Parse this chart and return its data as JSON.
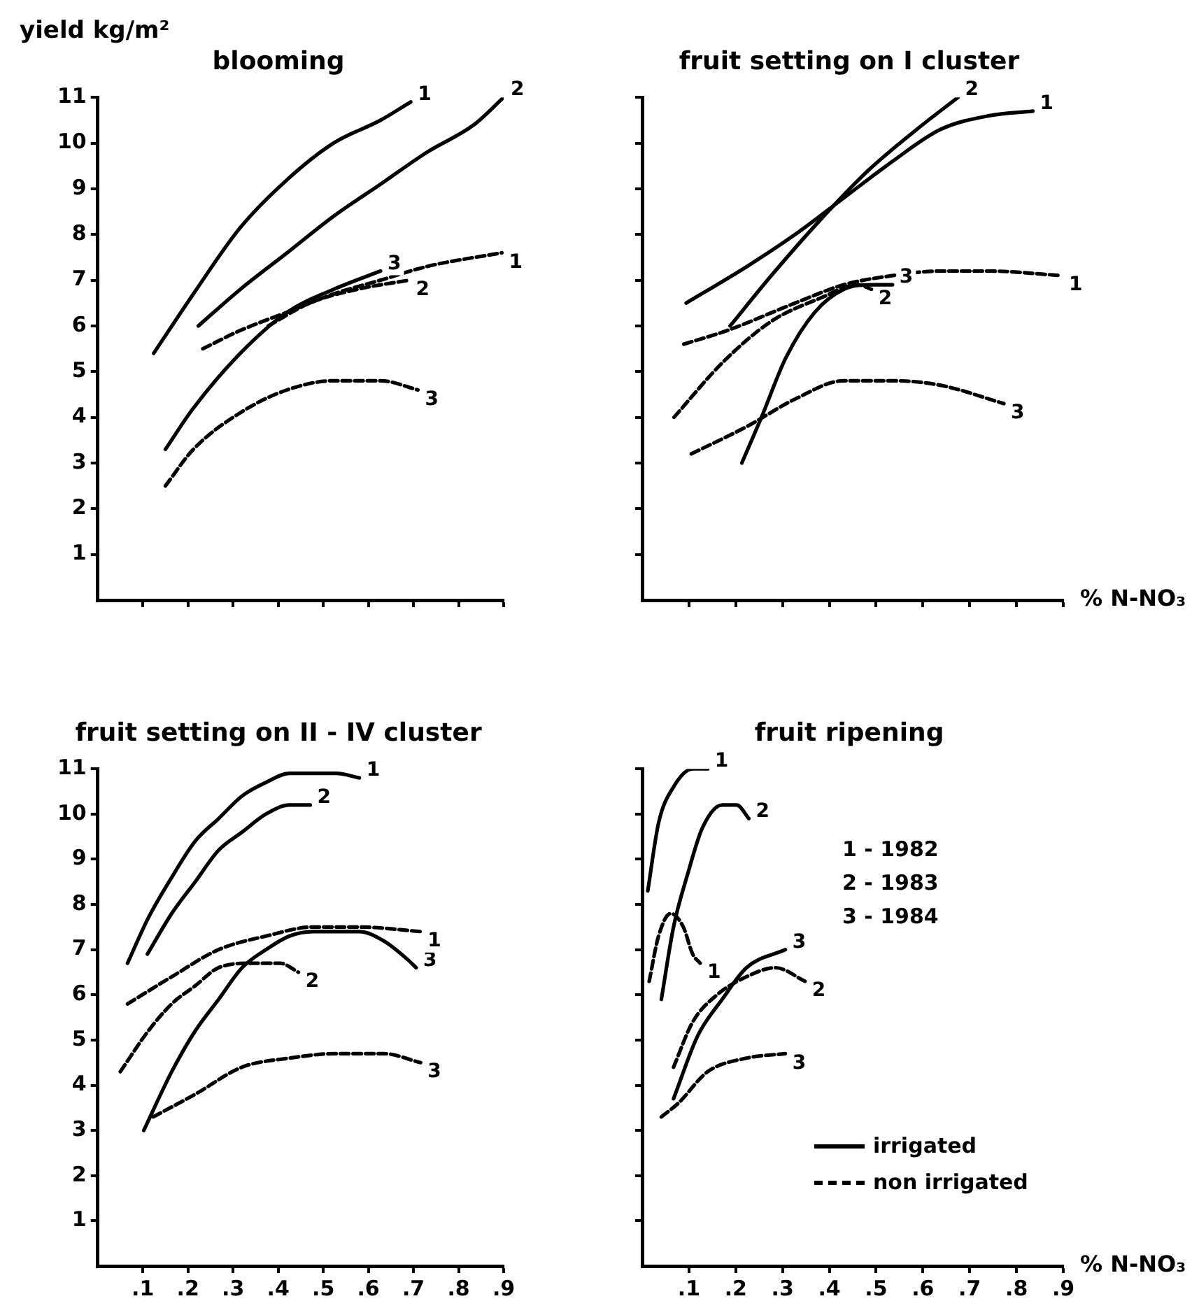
{
  "chart_data": [
    {
      "type": "line",
      "title": "blooming",
      "ylabel": "yield kg/m²",
      "xlim": [
        0,
        0.9
      ],
      "ylim": [
        0,
        11
      ],
      "xticks": [
        {
          "value": 0.1,
          "label": null
        },
        {
          "value": 0.2,
          "label": null
        },
        {
          "value": 0.3,
          "label": null
        },
        {
          "value": 0.4,
          "label": null
        },
        {
          "value": 0.5,
          "label": null
        },
        {
          "value": 0.6,
          "label": null
        },
        {
          "value": 0.7,
          "label": null
        },
        {
          "value": 0.8,
          "label": null
        },
        {
          "value": 0.9,
          "label": null
        }
      ],
      "yticks": [
        1,
        2,
        3,
        4,
        5,
        6,
        7,
        8,
        9,
        10,
        11
      ],
      "tick_labels": "y",
      "marker": "none",
      "series": [
        {
          "name": "1",
          "color": "#000000",
          "line_style": "solid",
          "x": [
            0.124,
            0.212,
            0.316,
            0.42,
            0.523,
            0.627,
            0.694
          ],
          "values": [
            5.4,
            6.7,
            8.15,
            9.2,
            10.0,
            10.5,
            10.9
          ]
        },
        {
          "name": "2",
          "color": "#000000",
          "line_style": "solid",
          "x": [
            0.223,
            0.316,
            0.42,
            0.523,
            0.627,
            0.73,
            0.834,
            0.9
          ],
          "values": [
            6.0,
            6.8,
            7.6,
            8.4,
            9.1,
            9.8,
            10.4,
            11.0
          ]
        },
        {
          "name": "3",
          "color": "#000000",
          "line_style": "solid",
          "x": [
            0.15,
            0.212,
            0.316,
            0.42,
            0.523,
            0.627
          ],
          "values": [
            3.3,
            4.2,
            5.4,
            6.3,
            6.8,
            7.2
          ]
        },
        {
          "name": "1",
          "color": "#000000",
          "line_style": "dashed",
          "x": [
            0.233,
            0.316,
            0.42,
            0.523,
            0.627,
            0.73,
            0.896
          ],
          "values": [
            5.5,
            5.9,
            6.3,
            6.7,
            7.0,
            7.3,
            7.6
          ]
        },
        {
          "name": "2",
          "color": "#000000",
          "line_style": "dashed",
          "x": [
            0.378,
            0.47,
            0.575,
            0.69
          ],
          "values": [
            6.0,
            6.5,
            6.8,
            7.0
          ]
        },
        {
          "name": "3",
          "color": "#000000",
          "line_style": "dashed",
          "x": [
            0.15,
            0.212,
            0.316,
            0.42,
            0.523,
            0.627,
            0.71
          ],
          "values": [
            2.5,
            3.3,
            4.1,
            4.6,
            4.8,
            4.8,
            4.6
          ]
        }
      ]
    },
    {
      "type": "line",
      "title": "fruit setting on I cluster",
      "xlabel": "% N-NO₃",
      "xlim": [
        0,
        0.9
      ],
      "ylim": [
        0,
        11
      ],
      "xticks": [
        {
          "value": 0.1,
          "label": null
        },
        {
          "value": 0.2,
          "label": null
        },
        {
          "value": 0.3,
          "label": null
        },
        {
          "value": 0.4,
          "label": null
        },
        {
          "value": 0.5,
          "label": null
        },
        {
          "value": 0.6,
          "label": null
        },
        {
          "value": 0.7,
          "label": null
        },
        {
          "value": 0.8,
          "label": null
        },
        {
          "value": 0.9,
          "label": null
        }
      ],
      "yticks": [
        {
          "value": 1,
          "label": null
        },
        {
          "value": 2,
          "label": null
        },
        {
          "value": 3,
          "label": null
        },
        {
          "value": 4,
          "label": null
        },
        {
          "value": 5,
          "label": null
        },
        {
          "value": 6,
          "label": null
        },
        {
          "value": 7,
          "label": null
        },
        {
          "value": 8,
          "label": null
        },
        {
          "value": 9,
          "label": null
        },
        {
          "value": 10,
          "label": null
        },
        {
          "value": 11,
          "label": null
        }
      ],
      "tick_labels": false,
      "marker": "none",
      "series": [
        {
          "name": "1",
          "color": "#000000",
          "line_style": "solid",
          "x": [
            0.094,
            0.224,
            0.327,
            0.431,
            0.535,
            0.638,
            0.742,
            0.835
          ],
          "values": [
            6.5,
            7.3,
            8.0,
            8.8,
            9.6,
            10.3,
            10.6,
            10.7
          ]
        },
        {
          "name": "2",
          "color": "#000000",
          "line_style": "solid",
          "x": [
            0.188,
            0.276,
            0.379,
            0.483,
            0.587,
            0.675
          ],
          "values": [
            6.0,
            7.1,
            8.3,
            9.4,
            10.3,
            11.0
          ]
        },
        {
          "name": "3",
          "color": "#000000",
          "line_style": "solid",
          "x": [
            0.213,
            0.255,
            0.307,
            0.369,
            0.431,
            0.493,
            0.535
          ],
          "values": [
            3.0,
            4.0,
            5.3,
            6.3,
            6.8,
            6.9,
            6.9
          ]
        },
        {
          "name": "1",
          "color": "#000000",
          "line_style": "dashed",
          "x": [
            0.089,
            0.182,
            0.327,
            0.431,
            0.535,
            0.638,
            0.742,
            0.897
          ],
          "values": [
            5.6,
            5.9,
            6.5,
            6.9,
            7.1,
            7.2,
            7.2,
            7.1
          ]
        },
        {
          "name": "2",
          "color": "#000000",
          "line_style": "dashed",
          "x": [
            0.068,
            0.172,
            0.276,
            0.379,
            0.462,
            0.49
          ],
          "values": [
            4.0,
            5.2,
            6.1,
            6.6,
            6.9,
            6.8
          ]
        },
        {
          "name": "3",
          "color": "#000000",
          "line_style": "dashed",
          "x": [
            0.105,
            0.224,
            0.327,
            0.431,
            0.535,
            0.638,
            0.773
          ],
          "values": [
            3.2,
            3.8,
            4.4,
            4.8,
            4.8,
            4.7,
            4.3
          ]
        }
      ]
    },
    {
      "type": "line",
      "title": "fruit setting on II - IV cluster",
      "xlim": [
        0,
        0.9
      ],
      "ylim": [
        0,
        11
      ],
      "xticks": [
        {
          "value": 0.1,
          "label": ".1"
        },
        {
          "value": 0.2,
          "label": ".2"
        },
        {
          "value": 0.3,
          "label": ".3"
        },
        {
          "value": 0.4,
          "label": ".4"
        },
        {
          "value": 0.5,
          "label": ".5"
        },
        {
          "value": 0.6,
          "label": ".6"
        },
        {
          "value": 0.7,
          "label": ".7"
        },
        {
          "value": 0.8,
          "label": ".8"
        },
        {
          "value": 0.9,
          "label": ".9"
        }
      ],
      "yticks": [
        1,
        2,
        3,
        4,
        5,
        6,
        7,
        8,
        9,
        10,
        11
      ],
      "marker": "none",
      "series": [
        {
          "name": "1",
          "color": "#000000",
          "line_style": "solid",
          "x": [
            0.066,
            0.112,
            0.164,
            0.216,
            0.268,
            0.32,
            0.373,
            0.425,
            0.477,
            0.529,
            0.58
          ],
          "values": [
            6.7,
            7.7,
            8.6,
            9.4,
            9.9,
            10.4,
            10.7,
            10.9,
            10.9,
            10.9,
            10.8
          ]
        },
        {
          "name": "2",
          "color": "#000000",
          "line_style": "solid",
          "x": [
            0.11,
            0.164,
            0.216,
            0.268,
            0.32,
            0.373,
            0.425,
            0.471
          ],
          "values": [
            6.9,
            7.8,
            8.5,
            9.2,
            9.6,
            10.0,
            10.2,
            10.2
          ]
        },
        {
          "name": "3",
          "color": "#000000",
          "line_style": "solid",
          "x": [
            0.102,
            0.164,
            0.216,
            0.268,
            0.32,
            0.373,
            0.425,
            0.477,
            0.529,
            0.58,
            0.633,
            0.685,
            0.706
          ],
          "values": [
            3.0,
            4.3,
            5.2,
            5.9,
            6.6,
            7.0,
            7.3,
            7.4,
            7.4,
            7.4,
            7.2,
            6.8,
            6.6
          ]
        },
        {
          "name": "1",
          "color": "#000000",
          "line_style": "dashed",
          "x": [
            0.066,
            0.164,
            0.268,
            0.373,
            0.477,
            0.58,
            0.716
          ],
          "values": [
            5.8,
            6.4,
            7.0,
            7.3,
            7.5,
            7.5,
            7.4
          ]
        },
        {
          "name": "2",
          "color": "#000000",
          "line_style": "dashed",
          "x": [
            0.05,
            0.112,
            0.164,
            0.216,
            0.268,
            0.341,
            0.404,
            0.445
          ],
          "values": [
            4.3,
            5.2,
            5.8,
            6.2,
            6.6,
            6.7,
            6.7,
            6.5
          ]
        },
        {
          "name": "3",
          "color": "#000000",
          "line_style": "dashed",
          "x": [
            0.123,
            0.216,
            0.32,
            0.425,
            0.529,
            0.633,
            0.716
          ],
          "values": [
            3.3,
            3.8,
            4.4,
            4.6,
            4.7,
            4.7,
            4.5
          ]
        }
      ]
    },
    {
      "type": "line",
      "title": "fruit ripening",
      "xlabel": "% N-NO₃",
      "xlim": [
        0,
        0.9
      ],
      "ylim": [
        0,
        11
      ],
      "xticks": [
        {
          "value": 0.1,
          "label": ".1"
        },
        {
          "value": 0.2,
          "label": ".2"
        },
        {
          "value": 0.3,
          "label": ".3"
        },
        {
          "value": 0.4,
          "label": ".4"
        },
        {
          "value": 0.5,
          "label": ".5"
        },
        {
          "value": 0.6,
          "label": ".6"
        },
        {
          "value": 0.7,
          "label": ".7"
        },
        {
          "value": 0.8,
          "label": ".8"
        },
        {
          "value": 0.9,
          "label": ".9"
        }
      ],
      "yticks": [
        {
          "value": 1,
          "label": null
        },
        {
          "value": 2,
          "label": null
        },
        {
          "value": 3,
          "label": null
        },
        {
          "value": 4,
          "label": null
        },
        {
          "value": 5,
          "label": null
        },
        {
          "value": 6,
          "label": null
        },
        {
          "value": 7,
          "label": null
        },
        {
          "value": 8,
          "label": null
        },
        {
          "value": 9,
          "label": null
        },
        {
          "value": 10,
          "label": null
        },
        {
          "value": 11,
          "label": null
        }
      ],
      "tick_labels": "x",
      "marker": "none",
      "annotations": [
        "1 - 1982",
        "2 - 1983",
        "3 - 1984",
        "irrigated",
        "non irrigated"
      ],
      "series": [
        {
          "name": "1",
          "color": "#000000",
          "line_style": "solid",
          "x": [
            0.012,
            0.035,
            0.067,
            0.108,
            0.14
          ],
          "values": [
            8.3,
            9.8,
            10.6,
            11.0,
            11.0
          ]
        },
        {
          "name": "2",
          "color": "#000000",
          "line_style": "solid",
          "x": [
            0.041,
            0.067,
            0.098,
            0.129,
            0.171,
            0.202,
            0.228
          ],
          "values": [
            5.9,
            7.5,
            8.7,
            9.7,
            10.2,
            10.2,
            9.9
          ]
        },
        {
          "name": "3",
          "color": "#000000",
          "line_style": "solid",
          "x": [
            0.067,
            0.119,
            0.171,
            0.223,
            0.306
          ],
          "values": [
            3.7,
            5.1,
            5.9,
            6.6,
            7.0
          ]
        },
        {
          "name": "1",
          "color": "#000000",
          "line_style": "dashed",
          "x": [
            0.015,
            0.035,
            0.061,
            0.088,
            0.108,
            0.124
          ],
          "values": [
            6.3,
            7.3,
            7.8,
            7.5,
            6.9,
            6.7
          ]
        },
        {
          "name": "2",
          "color": "#000000",
          "line_style": "dashed",
          "x": [
            0.067,
            0.108,
            0.16,
            0.223,
            0.285,
            0.348
          ],
          "values": [
            4.4,
            5.4,
            6.0,
            6.4,
            6.6,
            6.3
          ]
        },
        {
          "name": "3",
          "color": "#000000",
          "line_style": "dashed",
          "x": [
            0.041,
            0.077,
            0.14,
            0.223,
            0.306
          ],
          "values": [
            3.3,
            3.6,
            4.3,
            4.6,
            4.7
          ]
        }
      ]
    }
  ]
}
